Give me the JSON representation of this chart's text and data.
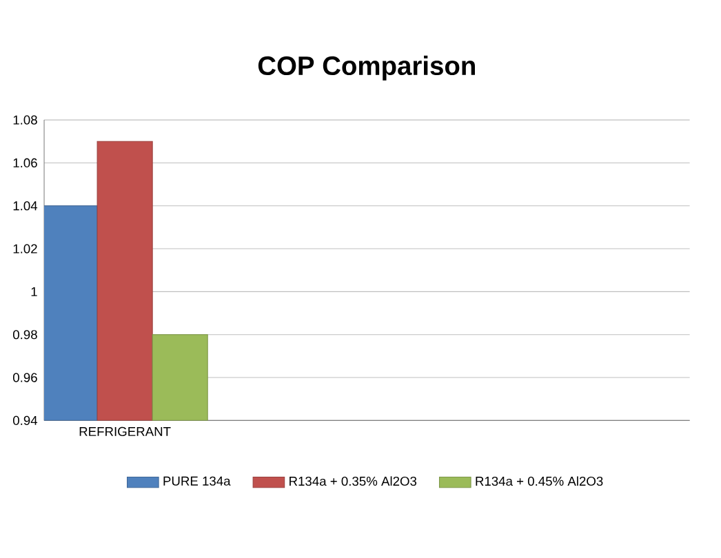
{
  "chart_data": {
    "type": "bar",
    "title": "COP Comparison",
    "categories": [
      "REFRIGERANT",
      null,
      null,
      null
    ],
    "series": [
      {
        "name": "PURE 134a",
        "color": "#4f81bd",
        "values": [
          1.04,
          null,
          null,
          null
        ]
      },
      {
        "name": "R134a + 0.35% Al2O3",
        "color": "#c0504d",
        "values": [
          1.07,
          null,
          null,
          null
        ]
      },
      {
        "name": "R134a + 0.45% Al2O3",
        "color": "#9bbb59",
        "values": [
          0.98,
          null,
          null,
          null
        ]
      }
    ],
    "ylim": [
      0.94,
      1.08
    ],
    "yticks": [
      0.94,
      0.96,
      0.98,
      1,
      1.02,
      1.04,
      1.06,
      1.08
    ],
    "grid": "y",
    "legend": "bottom"
  }
}
